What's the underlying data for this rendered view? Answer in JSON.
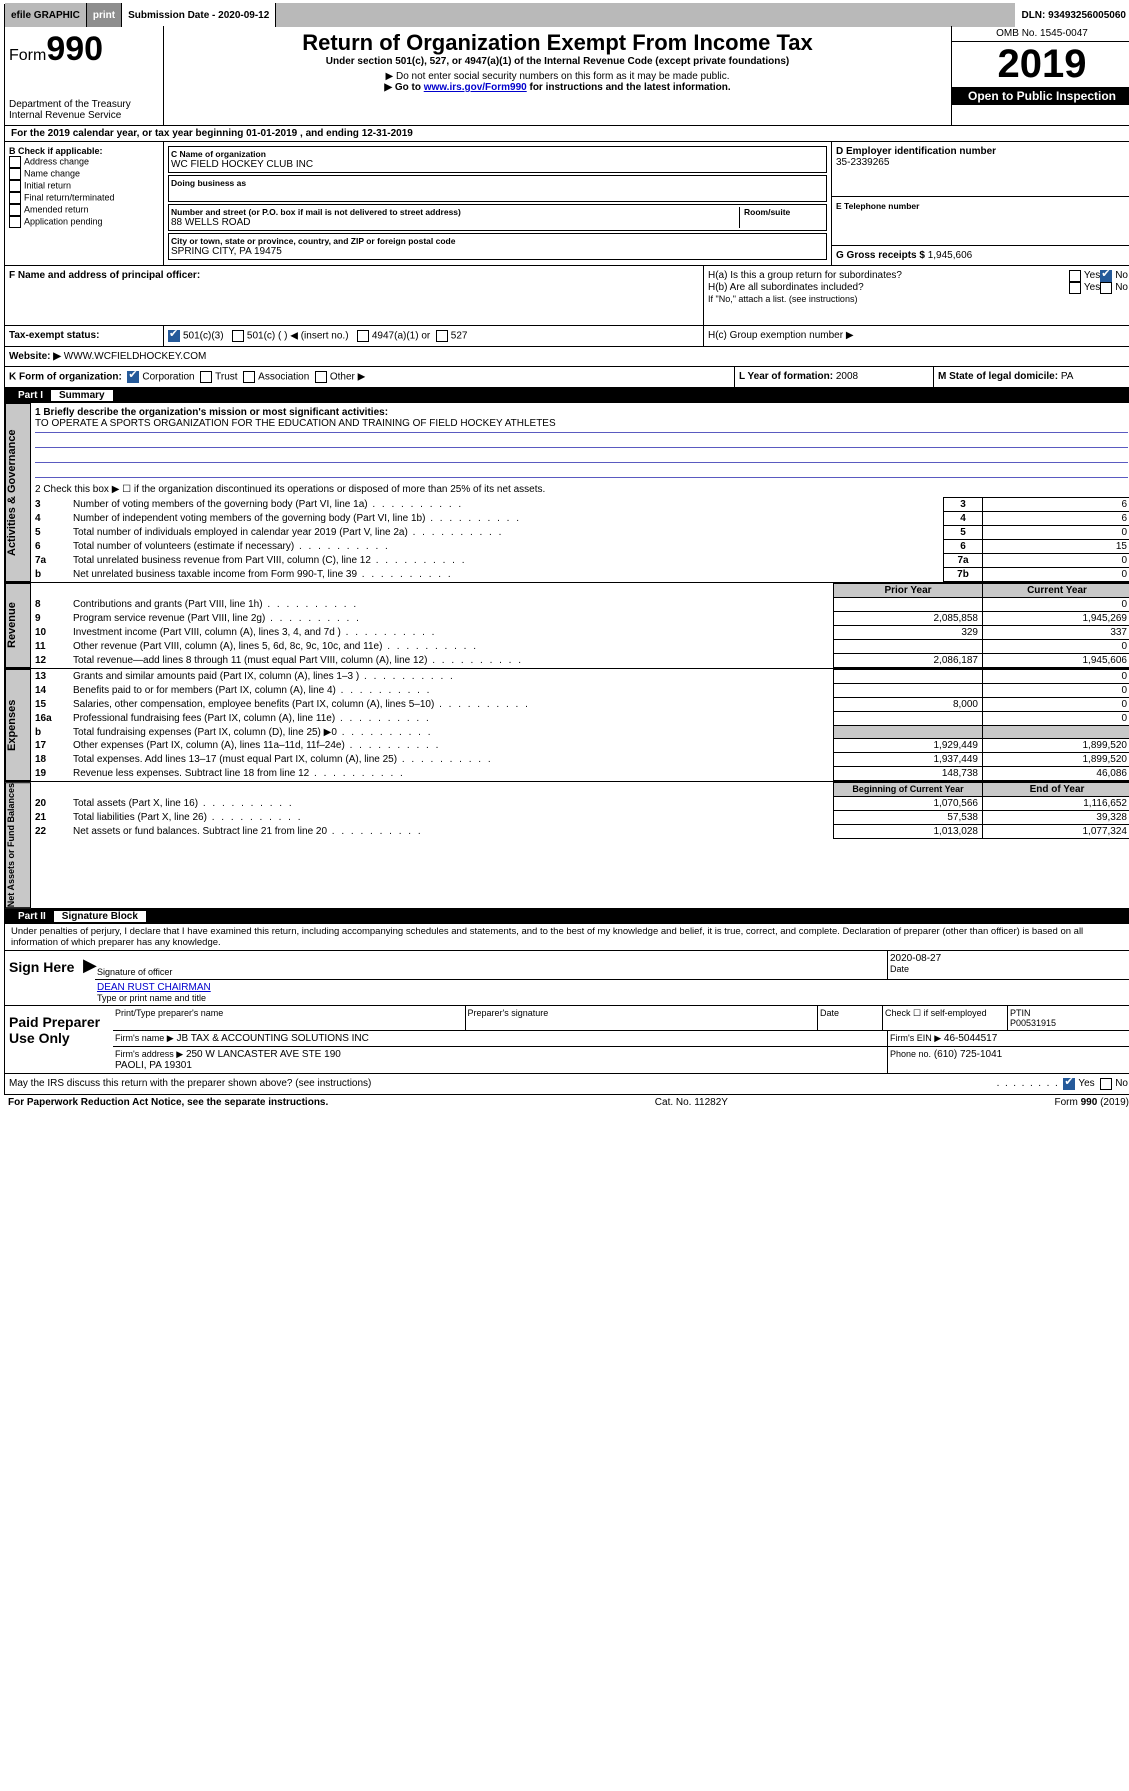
{
  "top": {
    "efile": "efile GRAPHIC",
    "print": "print",
    "submission_label": "Submission Date - 2020-09-12",
    "dln": "DLN: 93493256005060"
  },
  "header": {
    "form_prefix": "Form",
    "form_number": "990",
    "dept": "Department of the Treasury\nInternal Revenue Service",
    "title": "Return of Organization Exempt From Income Tax",
    "subtitle": "Under section 501(c), 527, or 4947(a)(1) of the Internal Revenue Code (except private foundations)",
    "note1": "▶ Do not enter social security numbers on this form as it may be made public.",
    "note2_pre": "▶ Go to ",
    "note2_link": "www.irs.gov/Form990",
    "note2_post": " for instructions and the latest information.",
    "omb": "OMB No. 1545-0047",
    "year": "2019",
    "open": "Open to Public Inspection"
  },
  "period": "For the 2019 calendar year, or tax year beginning 01-01-2019    , and ending 12-31-2019",
  "boxB": {
    "label": "B Check if applicable:",
    "opts": [
      "Address change",
      "Name change",
      "Initial return",
      "Final return/terminated",
      "Amended return",
      "Application pending"
    ]
  },
  "boxC": {
    "name_label": "C Name of organization",
    "name": "WC FIELD HOCKEY CLUB INC",
    "dba_label": "Doing business as",
    "addr_label": "Number and street (or P.O. box if mail is not delivered to street address)",
    "room_label": "Room/suite",
    "addr": "88 WELLS ROAD",
    "city_label": "City or town, state or province, country, and ZIP or foreign postal code",
    "city": "SPRING CITY, PA  19475"
  },
  "boxD": {
    "label": "D Employer identification number",
    "val": "35-2339265"
  },
  "boxE": {
    "label": "E Telephone number",
    "val": ""
  },
  "boxG": {
    "label": "G Gross receipts $",
    "val": "1,945,606"
  },
  "boxF": {
    "label": "F  Name and address of principal officer:"
  },
  "boxH": {
    "a": "H(a)  Is this a group return for subordinates?",
    "b": "H(b)  Are all subordinates included?",
    "b_note": "If \"No,\" attach a list. (see instructions)",
    "c": "H(c)  Group exemption number ▶"
  },
  "boxI": {
    "label": "Tax-exempt status:",
    "opt1": "501(c)(3)",
    "opt2": "501(c) (   ) ◀ (insert no.)",
    "opt3": "4947(a)(1) or",
    "opt4": "527"
  },
  "boxJ": {
    "label": "Website: ▶",
    "val": "WWW.WCFIELDHOCKEY.COM"
  },
  "boxK": {
    "label": "K Form of organization:",
    "opts": [
      "Corporation",
      "Trust",
      "Association",
      "Other ▶"
    ]
  },
  "boxL": {
    "label": "L Year of formation:",
    "val": "2008"
  },
  "boxM": {
    "label": "M State of legal domicile:",
    "val": "PA"
  },
  "part1": {
    "title": "Part I",
    "name": "Summary",
    "line1_label": "1  Briefly describe the organization's mission or most significant activities:",
    "line1_val": "TO OPERATE A SPORTS ORGANIZATION FOR THE EDUCATION AND TRAINING OF FIELD HOCKEY ATHLETES",
    "line2": "2   Check this box ▶ ☐  if the organization discontinued its operations or disposed of more than 25% of its net assets.",
    "rows_a": [
      {
        "n": "3",
        "t": "Number of voting members of the governing body (Part VI, line 1a)",
        "k": "3",
        "v": "6"
      },
      {
        "n": "4",
        "t": "Number of independent voting members of the governing body (Part VI, line 1b)",
        "k": "4",
        "v": "6"
      },
      {
        "n": "5",
        "t": "Total number of individuals employed in calendar year 2019 (Part V, line 2a)",
        "k": "5",
        "v": "0"
      },
      {
        "n": "6",
        "t": "Total number of volunteers (estimate if necessary)",
        "k": "6",
        "v": "15"
      },
      {
        "n": "7a",
        "t": "Total unrelated business revenue from Part VIII, column (C), line 12",
        "k": "7a",
        "v": "0"
      },
      {
        "n": "b",
        "t": "Net unrelated business taxable income from Form 990-T, line 39",
        "k": "7b",
        "v": "0"
      }
    ],
    "col_prior": "Prior Year",
    "col_current": "Current Year",
    "rows_rev": [
      {
        "n": "8",
        "t": "Contributions and grants (Part VIII, line 1h)",
        "p": "",
        "c": "0"
      },
      {
        "n": "9",
        "t": "Program service revenue (Part VIII, line 2g)",
        "p": "2,085,858",
        "c": "1,945,269"
      },
      {
        "n": "10",
        "t": "Investment income (Part VIII, column (A), lines 3, 4, and 7d )",
        "p": "329",
        "c": "337"
      },
      {
        "n": "11",
        "t": "Other revenue (Part VIII, column (A), lines 5, 6d, 8c, 9c, 10c, and 11e)",
        "p": "",
        "c": "0"
      },
      {
        "n": "12",
        "t": "Total revenue—add lines 8 through 11 (must equal Part VIII, column (A), line 12)",
        "p": "2,086,187",
        "c": "1,945,606"
      }
    ],
    "rows_exp": [
      {
        "n": "13",
        "t": "Grants and similar amounts paid (Part IX, column (A), lines 1–3 )",
        "p": "",
        "c": "0"
      },
      {
        "n": "14",
        "t": "Benefits paid to or for members (Part IX, column (A), line 4)",
        "p": "",
        "c": "0"
      },
      {
        "n": "15",
        "t": "Salaries, other compensation, employee benefits (Part IX, column (A), lines 5–10)",
        "p": "8,000",
        "c": "0"
      },
      {
        "n": "16a",
        "t": "Professional fundraising fees (Part IX, column (A), line 11e)",
        "p": "",
        "c": "0"
      },
      {
        "n": "b",
        "t": "Total fundraising expenses (Part IX, column (D), line 25) ▶0",
        "p": "GREY",
        "c": "GREY"
      },
      {
        "n": "17",
        "t": "Other expenses (Part IX, column (A), lines 11a–11d, 11f–24e)",
        "p": "1,929,449",
        "c": "1,899,520"
      },
      {
        "n": "18",
        "t": "Total expenses. Add lines 13–17 (must equal Part IX, column (A), line 25)",
        "p": "1,937,449",
        "c": "1,899,520"
      },
      {
        "n": "19",
        "t": "Revenue less expenses. Subtract line 18 from line 12",
        "p": "148,738",
        "c": "46,086"
      }
    ],
    "col_begin": "Beginning of Current Year",
    "col_end": "End of Year",
    "rows_net": [
      {
        "n": "20",
        "t": "Total assets (Part X, line 16)",
        "p": "1,070,566",
        "c": "1,116,652"
      },
      {
        "n": "21",
        "t": "Total liabilities (Part X, line 26)",
        "p": "57,538",
        "c": "39,328"
      },
      {
        "n": "22",
        "t": "Net assets or fund balances. Subtract line 21 from line 20",
        "p": "1,013,028",
        "c": "1,077,324"
      }
    ],
    "side_gov": "Activities & Governance",
    "side_rev": "Revenue",
    "side_exp": "Expenses",
    "side_net": "Net Assets or Fund Balances"
  },
  "part2": {
    "title": "Part II",
    "name": "Signature Block",
    "penalty": "Under penalties of perjury, I declare that I have examined this return, including accompanying schedules and statements, and to the best of my knowledge and belief, it is true, correct, and complete. Declaration of preparer (other than officer) is based on all information of which preparer has any knowledge.",
    "sign_here": "Sign Here",
    "sig_officer": "Signature of officer",
    "sig_date_label": "Date",
    "sig_date": "2020-08-27",
    "officer_name": "DEAN RUST  CHAIRMAN",
    "type_name": "Type or print name and title",
    "paid": "Paid Preparer Use Only",
    "prep_name_label": "Print/Type preparer's name",
    "prep_sig_label": "Preparer's signature",
    "date_label": "Date",
    "check_self": "Check ☐ if self-employed",
    "ptin_label": "PTIN",
    "ptin": "P00531915",
    "firm_name_label": "Firm's name    ▶",
    "firm_name": "JB TAX & ACCOUNTING SOLUTIONS INC",
    "firm_ein_label": "Firm's EIN ▶",
    "firm_ein": "46-5044517",
    "firm_addr_label": "Firm's address ▶",
    "firm_addr": "250 W LANCASTER AVE STE 190\nPAOLI, PA  19301",
    "phone_label": "Phone no.",
    "phone": "(610) 725-1041",
    "discuss": "May the IRS discuss this return with the preparer shown above? (see instructions)"
  },
  "footer": {
    "left": "For Paperwork Reduction Act Notice, see the separate instructions.",
    "mid": "Cat. No. 11282Y",
    "right": "Form 990 (2019)"
  },
  "yesno": {
    "yes": "Yes",
    "no": "No"
  }
}
